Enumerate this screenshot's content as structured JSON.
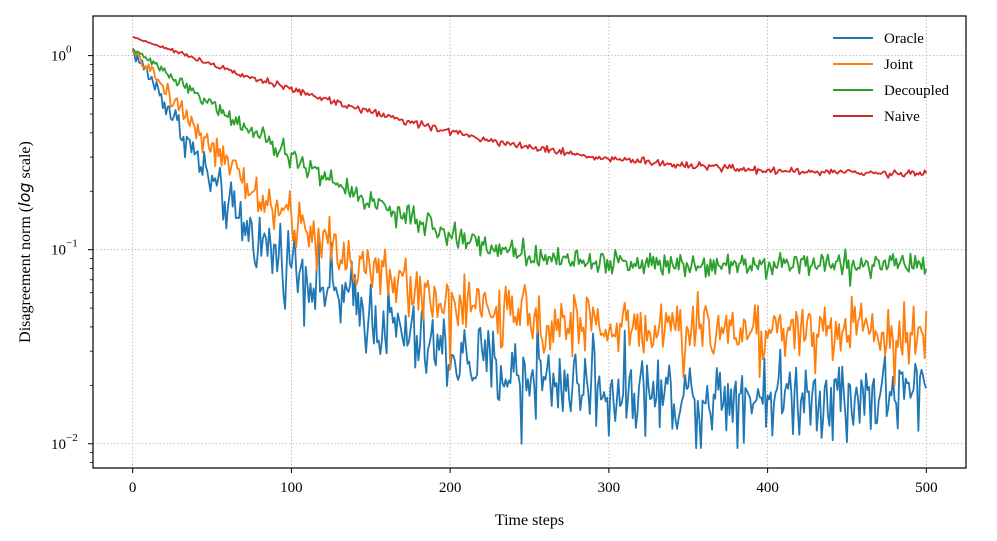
{
  "chart_data": {
    "type": "line",
    "title": "",
    "xlabel": "Time steps",
    "ylabel_prefix": "Disagreement norm (",
    "ylabel_italic": "log",
    "ylabel_suffix": " scale)",
    "yscale": "log",
    "xlim": [
      -25,
      525
    ],
    "ylim": [
      0.0075,
      1.6
    ],
    "xticks": [
      0,
      100,
      200,
      300,
      400,
      500
    ],
    "xtick_labels": [
      "0",
      "100",
      "200",
      "300",
      "400",
      "500"
    ],
    "yticks": [
      1,
      0.1,
      0.01
    ],
    "ytick_labels": [
      {
        "base": "10",
        "exp": "0"
      },
      {
        "base": "10",
        "exp": "−1"
      },
      {
        "base": "10",
        "exp": "−2"
      }
    ],
    "grid": true,
    "legend_position": "top-right",
    "series": [
      {
        "name": "Oracle",
        "color": "#1f77b4",
        "x": [
          0,
          10,
          20,
          30,
          40,
          50,
          60,
          70,
          80,
          90,
          100,
          110,
          120,
          130,
          140,
          150,
          160,
          170,
          180,
          190,
          200,
          210,
          220,
          230,
          240,
          250,
          260,
          270,
          280,
          290,
          300,
          310,
          320,
          330,
          340,
          350,
          360,
          370,
          380,
          390,
          400,
          410,
          420,
          430,
          440,
          450,
          460,
          470,
          480,
          490,
          500
        ],
        "y": [
          1.05,
          0.8,
          0.58,
          0.42,
          0.3,
          0.22,
          0.165,
          0.135,
          0.11,
          0.095,
          0.088,
          0.075,
          0.066,
          0.058,
          0.052,
          0.046,
          0.041,
          0.037,
          0.033,
          0.031,
          0.029,
          0.027,
          0.026,
          0.024,
          0.023,
          0.022,
          0.021,
          0.021,
          0.02,
          0.02,
          0.019,
          0.019,
          0.019,
          0.018,
          0.018,
          0.018,
          0.018,
          0.018,
          0.018,
          0.018,
          0.018,
          0.018,
          0.018,
          0.018,
          0.018,
          0.018,
          0.018,
          0.018,
          0.018,
          0.018,
          0.02
        ],
        "noise": 0.24,
        "spikes": [
          [
            245,
            0.01
          ],
          [
            358,
            0.0095
          ],
          [
            300,
            0.011
          ],
          [
            450,
            0.0102
          ],
          [
            255,
            0.045
          ],
          [
            290,
            0.037
          ]
        ]
      },
      {
        "name": "Joint",
        "color": "#ff7f0e",
        "x": [
          0,
          10,
          20,
          30,
          40,
          50,
          60,
          70,
          80,
          90,
          100,
          110,
          120,
          130,
          140,
          150,
          160,
          170,
          180,
          190,
          200,
          210,
          220,
          230,
          240,
          250,
          260,
          270,
          280,
          290,
          300,
          310,
          320,
          330,
          340,
          350,
          360,
          370,
          380,
          390,
          400,
          410,
          420,
          430,
          440,
          450,
          460,
          470,
          480,
          490,
          500
        ],
        "y": [
          1.05,
          0.86,
          0.68,
          0.54,
          0.43,
          0.34,
          0.27,
          0.22,
          0.185,
          0.16,
          0.145,
          0.125,
          0.11,
          0.098,
          0.088,
          0.079,
          0.072,
          0.066,
          0.061,
          0.057,
          0.054,
          0.051,
          0.049,
          0.047,
          0.045,
          0.044,
          0.043,
          0.042,
          0.041,
          0.041,
          0.04,
          0.04,
          0.04,
          0.039,
          0.039,
          0.039,
          0.039,
          0.039,
          0.039,
          0.039,
          0.039,
          0.039,
          0.039,
          0.039,
          0.039,
          0.039,
          0.039,
          0.039,
          0.039,
          0.039,
          0.035
        ],
        "noise": 0.17,
        "spikes": [
          [
            200,
            0.024
          ],
          [
            347,
            0.022
          ],
          [
            395,
            0.022
          ],
          [
            430,
            0.023
          ],
          [
            480,
            0.02
          ]
        ]
      },
      {
        "name": "Decoupled",
        "color": "#2ca02c",
        "x": [
          0,
          10,
          20,
          30,
          40,
          50,
          60,
          70,
          80,
          90,
          100,
          110,
          120,
          130,
          140,
          150,
          160,
          170,
          180,
          190,
          200,
          210,
          220,
          230,
          240,
          250,
          260,
          270,
          280,
          290,
          300,
          310,
          320,
          330,
          340,
          350,
          360,
          370,
          380,
          390,
          400,
          410,
          420,
          430,
          440,
          450,
          460,
          470,
          480,
          490,
          500
        ],
        "y": [
          1.08,
          0.95,
          0.83,
          0.73,
          0.64,
          0.56,
          0.49,
          0.43,
          0.38,
          0.335,
          0.3,
          0.268,
          0.24,
          0.215,
          0.195,
          0.178,
          0.163,
          0.15,
          0.139,
          0.129,
          0.12,
          0.113,
          0.107,
          0.102,
          0.098,
          0.095,
          0.092,
          0.09,
          0.088,
          0.087,
          0.086,
          0.085,
          0.085,
          0.085,
          0.085,
          0.085,
          0.085,
          0.085,
          0.085,
          0.085,
          0.085,
          0.085,
          0.085,
          0.085,
          0.085,
          0.085,
          0.085,
          0.085,
          0.085,
          0.085,
          0.08
        ],
        "noise": 0.07,
        "spikes": [
          [
            452,
            0.065
          ]
        ]
      },
      {
        "name": "Naive",
        "color": "#d62728",
        "x": [
          0,
          10,
          20,
          30,
          40,
          50,
          60,
          70,
          80,
          90,
          100,
          110,
          120,
          130,
          140,
          150,
          160,
          170,
          180,
          190,
          200,
          210,
          220,
          230,
          240,
          250,
          260,
          270,
          280,
          290,
          300,
          310,
          320,
          330,
          340,
          350,
          360,
          370,
          380,
          390,
          400,
          410,
          420,
          430,
          440,
          450,
          460,
          470,
          480,
          490,
          500
        ],
        "y": [
          1.25,
          1.17,
          1.1,
          1.03,
          0.965,
          0.905,
          0.85,
          0.8,
          0.75,
          0.71,
          0.67,
          0.635,
          0.6,
          0.57,
          0.54,
          0.515,
          0.49,
          0.465,
          0.445,
          0.425,
          0.405,
          0.39,
          0.375,
          0.36,
          0.35,
          0.34,
          0.33,
          0.32,
          0.31,
          0.3,
          0.295,
          0.29,
          0.285,
          0.28,
          0.275,
          0.27,
          0.267,
          0.264,
          0.261,
          0.259,
          0.257,
          0.255,
          0.253,
          0.251,
          0.25,
          0.249,
          0.248,
          0.248,
          0.248,
          0.248,
          0.248
        ],
        "noise": 0.022,
        "spikes": []
      }
    ]
  }
}
